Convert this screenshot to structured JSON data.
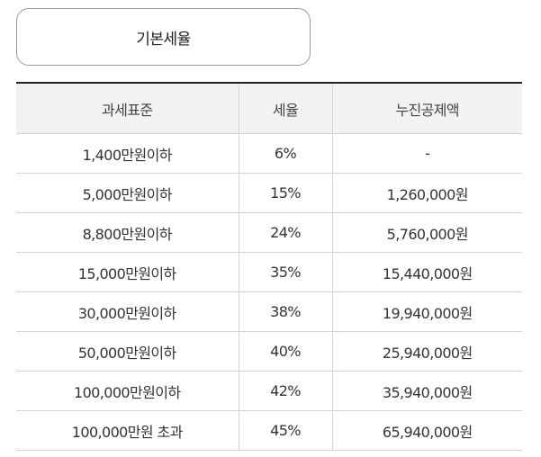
{
  "tab": {
    "label": "기본세율"
  },
  "table": {
    "headers": [
      "과세표준",
      "세율",
      "누진공제액"
    ],
    "rows": [
      [
        "1,400만원이하",
        "6%",
        "-"
      ],
      [
        "5,000만원이하",
        "15%",
        "1,260,000원"
      ],
      [
        "8,800만원이하",
        "24%",
        "5,760,000원"
      ],
      [
        "15,000만원이하",
        "35%",
        "15,440,000원"
      ],
      [
        "30,000만원이하",
        "38%",
        "19,940,000원"
      ],
      [
        "50,000만원이하",
        "40%",
        "25,940,000원"
      ],
      [
        "100,000만원이하",
        "42%",
        "35,940,000원"
      ],
      [
        "100,000만원 초과",
        "45%",
        "65,940,000원"
      ]
    ]
  }
}
